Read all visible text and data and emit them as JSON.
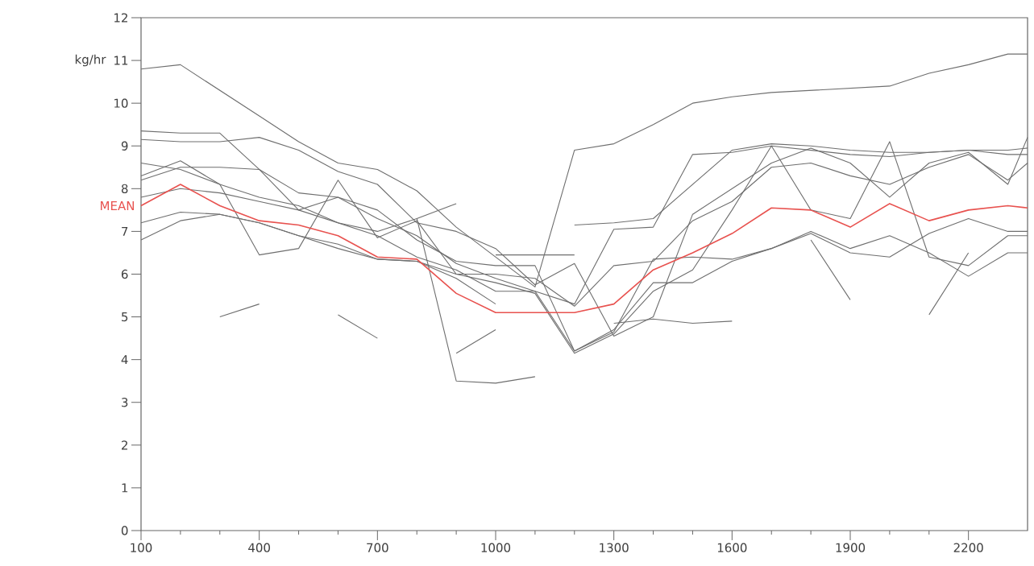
{
  "chart_data": {
    "type": "line",
    "ylabel": "kg/hr",
    "x": [
      100,
      200,
      300,
      400,
      500,
      600,
      700,
      800,
      900,
      1000,
      1100,
      1200,
      1300,
      1400,
      1500,
      1600,
      1700,
      1800,
      1900,
      2000,
      2100,
      2200,
      2300,
      2350
    ],
    "xlim": [
      100,
      2350
    ],
    "xticks": [
      100,
      400,
      700,
      1000,
      1300,
      1600,
      1900,
      2200
    ],
    "ylim": [
      0,
      12
    ],
    "yticks": [
      0,
      1,
      2,
      3,
      4,
      5,
      6,
      7,
      8,
      9,
      10,
      11,
      12
    ],
    "grid": false,
    "legend": false,
    "marker": "none",
    "line_style": "solid",
    "series": [
      {
        "color": "#6e6e6e",
        "values": [
          10.8,
          10.9,
          10.3,
          9.7,
          9.1,
          8.6,
          8.45,
          7.95,
          7.1,
          6.4,
          5.7,
          8.9,
          9.05,
          9.5,
          10.0,
          10.15,
          10.25,
          10.3,
          10.35,
          10.4,
          10.7,
          10.9,
          11.15,
          11.15
        ]
      },
      {
        "color": "#6e6e6e",
        "values": [
          9.35,
          9.3,
          9.3,
          8.45,
          7.5,
          7.8,
          7.3,
          6.9,
          6.25,
          5.9,
          5.6,
          4.2,
          4.65,
          6.35,
          6.4,
          6.35,
          6.6,
          6.95,
          6.5,
          6.4,
          6.95,
          7.3,
          7.0,
          7.0
        ]
      },
      {
        "color": "#6e6e6e",
        "values": [
          9.15,
          9.1,
          9.1,
          9.2,
          8.9,
          8.4,
          8.1,
          7.2,
          7.0,
          6.6,
          5.75,
          6.25,
          4.55,
          5.0,
          7.4,
          8.0,
          8.6,
          8.95,
          8.6,
          7.8,
          8.6,
          8.85,
          8.1,
          9.2
        ]
      },
      {
        "color": "#6e6e6e",
        "values": [
          8.6,
          8.45,
          8.1,
          7.8,
          7.6,
          7.2,
          7.0,
          7.3,
          3.5,
          3.45,
          3.6,
          null,
          null,
          null,
          null,
          null,
          null,
          null,
          null,
          null,
          null,
          null,
          null,
          null
        ]
      },
      {
        "color": "#6e6e6e",
        "values": [
          8.3,
          8.65,
          8.1,
          6.45,
          6.6,
          8.2,
          6.85,
          7.25,
          6.0,
          5.8,
          5.55,
          4.15,
          4.6,
          5.6,
          6.1,
          7.5,
          9.0,
          7.5,
          7.3,
          9.1,
          6.4,
          6.2,
          6.9,
          6.9
        ]
      },
      {
        "color": "#6e6e6e",
        "values": [
          8.2,
          8.5,
          8.5,
          8.45,
          7.9,
          7.8,
          7.5,
          6.8,
          6.3,
          6.2,
          6.2,
          4.2,
          4.7,
          5.8,
          5.8,
          6.3,
          6.6,
          7.0,
          6.6,
          6.9,
          6.5,
          5.95,
          6.5,
          6.5
        ]
      },
      {
        "color": "#6e6e6e",
        "values": [
          7.8,
          8.0,
          7.9,
          7.7,
          7.5,
          7.2,
          6.9,
          6.4,
          6.1,
          5.6,
          5.6,
          5.3,
          7.05,
          7.1,
          8.8,
          8.85,
          9.0,
          8.9,
          8.8,
          8.75,
          8.85,
          8.9,
          8.9,
          8.95
        ]
      },
      {
        "color": "#6e6e6e",
        "values": [
          7.2,
          7.45,
          7.4,
          7.2,
          6.9,
          6.7,
          6.35,
          6.3,
          5.9,
          5.3,
          null,
          null,
          null,
          null,
          null,
          null,
          null,
          null,
          null,
          null,
          null,
          null,
          null,
          null
        ]
      },
      {
        "color": "#6e6e6e",
        "values": [
          6.8,
          7.25,
          7.4,
          7.2,
          6.9,
          6.6,
          6.35,
          6.3,
          6.0,
          6.0,
          5.9,
          5.25,
          6.2,
          6.3,
          7.25,
          7.7,
          8.5,
          8.6,
          8.3,
          8.1,
          8.5,
          8.8,
          8.2,
          8.6
        ]
      },
      {
        "color": "#6e6e6e",
        "values": [
          null,
          null,
          null,
          null,
          null,
          null,
          null,
          null,
          null,
          null,
          null,
          7.15,
          7.2,
          7.3,
          8.1,
          8.9,
          9.05,
          9.0,
          8.9,
          8.85,
          8.85,
          8.9,
          8.8,
          8.8
        ]
      },
      {
        "color": "#6e6e6e",
        "values": [
          null,
          null,
          null,
          null,
          null,
          null,
          null,
          null,
          null,
          null,
          null,
          null,
          4.85,
          4.95,
          4.85,
          4.9,
          null,
          null,
          null,
          null,
          null,
          null,
          null,
          null
        ]
      },
      {
        "color": "#6e6e6e",
        "values": [
          null,
          null,
          null,
          null,
          null,
          null,
          null,
          null,
          null,
          6.45,
          6.45,
          6.45,
          null,
          null,
          null,
          null,
          null,
          null,
          null,
          null,
          null,
          null,
          null,
          null
        ]
      },
      {
        "color": "#6e6e6e",
        "values": [
          null,
          null,
          5.0,
          5.3,
          null,
          5.05,
          4.5,
          null,
          4.15,
          4.7,
          null,
          null,
          null,
          null,
          null,
          null,
          null,
          6.8,
          5.4,
          null,
          5.05,
          6.5,
          null,
          null
        ]
      },
      {
        "color": "#6e6e6e",
        "values": [
          null,
          null,
          null,
          null,
          null,
          null,
          null,
          7.3,
          7.65,
          null,
          null,
          null,
          null,
          null,
          null,
          null,
          null,
          null,
          null,
          null,
          null,
          null,
          null,
          null
        ]
      },
      {
        "name": "MEAN",
        "color": "#e8524f",
        "values": [
          7.6,
          8.1,
          7.6,
          7.25,
          7.15,
          6.9,
          6.4,
          6.35,
          5.55,
          5.1,
          5.1,
          5.1,
          5.3,
          6.1,
          6.5,
          6.95,
          7.55,
          7.5,
          7.1,
          7.65,
          7.25,
          7.5,
          7.6,
          7.55
        ]
      }
    ]
  }
}
